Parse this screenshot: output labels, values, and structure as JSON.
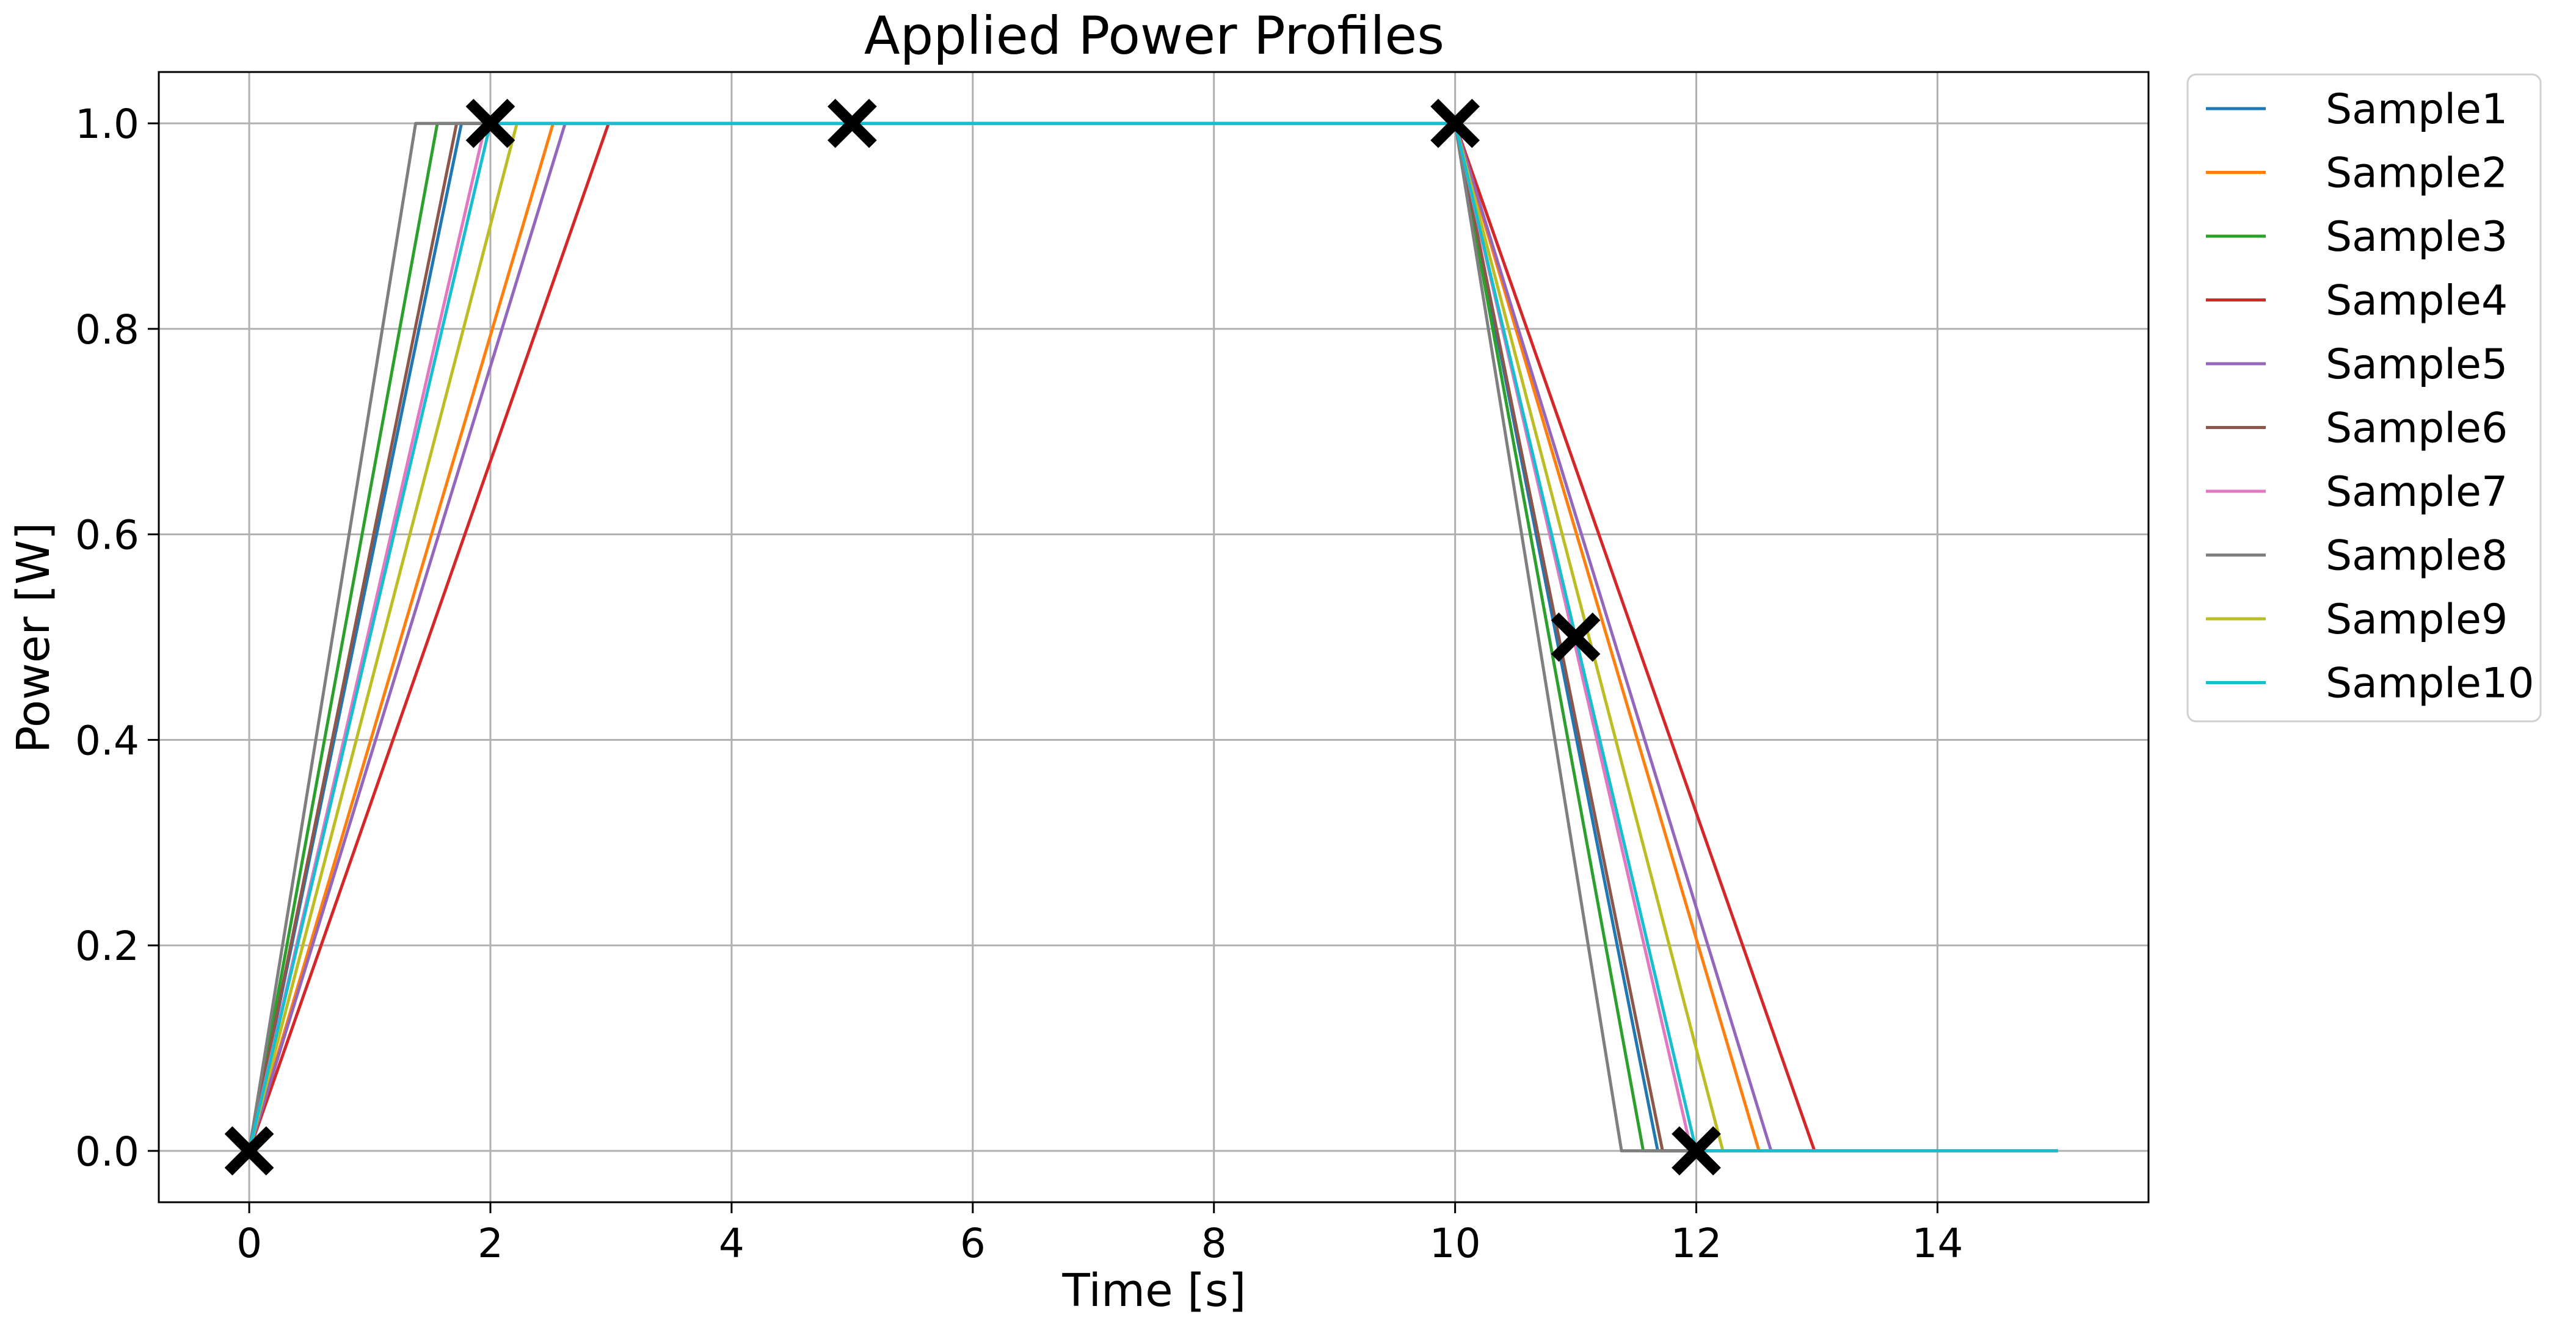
{
  "chart_data": {
    "type": "line",
    "title": "Applied Power Profiles",
    "xlabel": "Time [s]",
    "ylabel": "Power [W]",
    "xlim": [
      -0.75,
      15.75
    ],
    "ylim": [
      -0.05,
      1.05
    ],
    "xticks": [
      0,
      2,
      4,
      6,
      8,
      10,
      12,
      14
    ],
    "xtick_labels": [
      "0",
      "2",
      "4",
      "6",
      "8",
      "10",
      "12",
      "14"
    ],
    "yticks": [
      0.0,
      0.2,
      0.4,
      0.6,
      0.8,
      1.0
    ],
    "ytick_labels": [
      "0.0",
      "0.2",
      "0.4",
      "0.6",
      "0.8",
      "1.0"
    ],
    "grid": true,
    "legend_position": "outside-right",
    "series": [
      {
        "name": "Sample1",
        "color": "#1f77b4",
        "x": [
          0,
          1.76,
          10,
          11.68,
          15
        ],
        "y": [
          0,
          1,
          1,
          0,
          0
        ]
      },
      {
        "name": "Sample2",
        "color": "#ff7f0e",
        "x": [
          0,
          2.52,
          10,
          12.52,
          15
        ],
        "y": [
          0,
          1,
          1,
          0,
          0
        ]
      },
      {
        "name": "Sample3",
        "color": "#2ca02c",
        "x": [
          0,
          1.56,
          10,
          11.56,
          15
        ],
        "y": [
          0,
          1,
          1,
          0,
          0
        ]
      },
      {
        "name": "Sample4",
        "color": "#d62728",
        "x": [
          0,
          2.98,
          10,
          12.98,
          15
        ],
        "y": [
          0,
          1,
          1,
          0,
          0
        ]
      },
      {
        "name": "Sample5",
        "color": "#9467bd",
        "x": [
          0,
          2.62,
          10,
          12.62,
          15
        ],
        "y": [
          0,
          1,
          1,
          0,
          0
        ]
      },
      {
        "name": "Sample6",
        "color": "#8c564b",
        "x": [
          0,
          1.72,
          10,
          11.72,
          15
        ],
        "y": [
          0,
          1,
          1,
          0,
          0
        ]
      },
      {
        "name": "Sample7",
        "color": "#e377c2",
        "x": [
          0,
          1.96,
          10,
          11.96,
          15
        ],
        "y": [
          0,
          1,
          1,
          0,
          0
        ]
      },
      {
        "name": "Sample8",
        "color": "#7f7f7f",
        "x": [
          0,
          1.38,
          10,
          11.38,
          15
        ],
        "y": [
          0,
          1,
          1,
          0,
          0
        ]
      },
      {
        "name": "Sample9",
        "color": "#bcbd22",
        "x": [
          0,
          2.22,
          10,
          12.22,
          15
        ],
        "y": [
          0,
          1,
          1,
          0,
          0
        ]
      },
      {
        "name": "Sample10",
        "color": "#17becf",
        "x": [
          0,
          2.0,
          10,
          12.0,
          15
        ],
        "y": [
          0,
          1,
          1,
          0,
          0
        ]
      }
    ],
    "markers": {
      "symbol": "x",
      "color": "#000000",
      "points": [
        {
          "x": 0,
          "y": 0
        },
        {
          "x": 2,
          "y": 1
        },
        {
          "x": 5,
          "y": 1
        },
        {
          "x": 10,
          "y": 1
        },
        {
          "x": 11,
          "y": 0.5
        },
        {
          "x": 12,
          "y": 0
        }
      ]
    }
  }
}
